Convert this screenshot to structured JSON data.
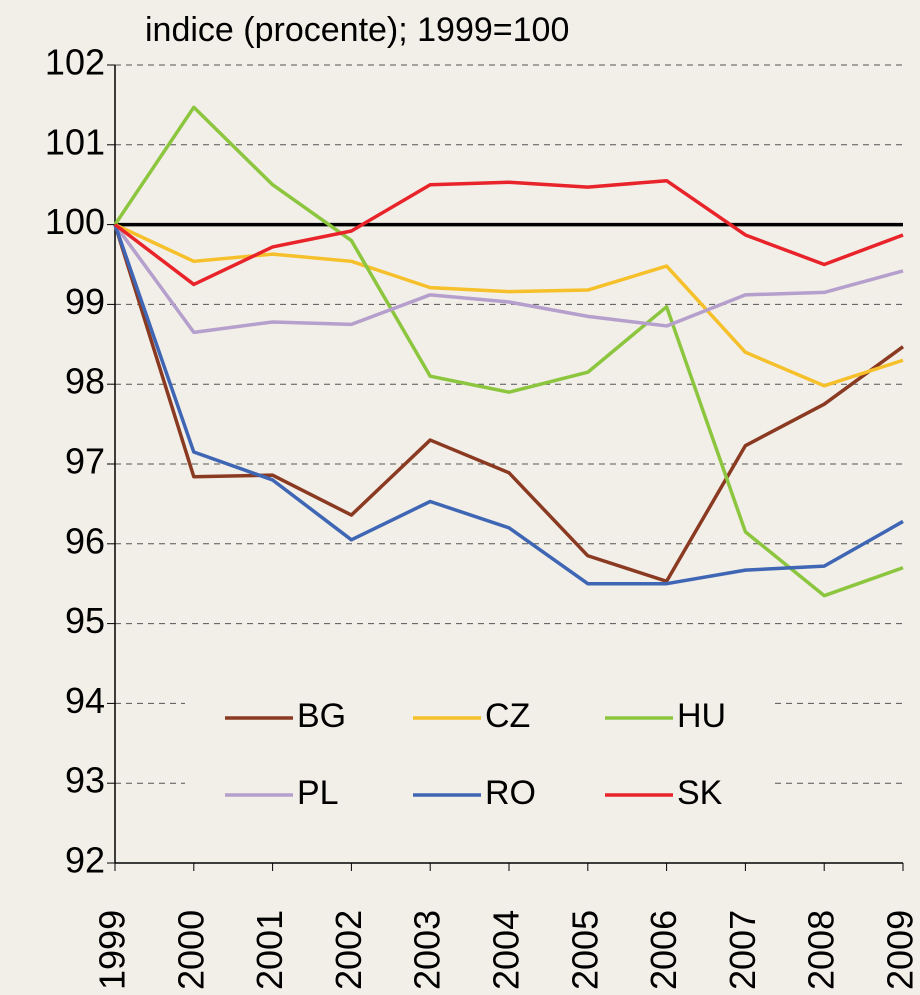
{
  "chart_data": {
    "type": "line",
    "title": "indice (procente); 1999=100",
    "x": [
      1999,
      2000,
      2001,
      2002,
      2003,
      2004,
      2005,
      2006,
      2007,
      2008,
      2009
    ],
    "xlim": [
      1999,
      2009
    ],
    "xticks": [
      1999,
      2000,
      2001,
      2002,
      2003,
      2004,
      2005,
      2006,
      2007,
      2008,
      2009
    ],
    "ylim": [
      92,
      102
    ],
    "yticks": [
      92,
      93,
      94,
      95,
      96,
      97,
      98,
      99,
      100,
      101,
      102
    ],
    "grid": true,
    "reference_line": 100,
    "legend": "inside-bottom",
    "series": [
      {
        "name": "BG",
        "color": "#8b3a22",
        "values": [
          100,
          96.84,
          96.86,
          96.36,
          97.3,
          96.89,
          95.85,
          95.53,
          97.23,
          97.75,
          98.47
        ]
      },
      {
        "name": "CZ",
        "color": "#f5c02a",
        "values": [
          100,
          99.54,
          99.63,
          99.54,
          99.21,
          99.16,
          99.18,
          99.48,
          98.4,
          97.98,
          98.3
        ]
      },
      {
        "name": "HU",
        "color": "#8cc63f",
        "values": [
          100,
          101.47,
          100.5,
          99.8,
          98.1,
          97.9,
          98.15,
          98.97,
          96.15,
          95.35,
          95.7
        ]
      },
      {
        "name": "PL",
        "color": "#b59fcc",
        "values": [
          100,
          98.65,
          98.78,
          98.75,
          99.12,
          99.03,
          98.85,
          98.73,
          99.12,
          99.15,
          99.42
        ]
      },
      {
        "name": "RO",
        "color": "#3f66b4",
        "values": [
          100,
          97.15,
          96.8,
          96.05,
          96.53,
          96.2,
          95.5,
          95.5,
          95.67,
          95.72,
          96.28
        ]
      },
      {
        "name": "SK",
        "color": "#e8232a",
        "values": [
          100,
          99.25,
          99.72,
          99.92,
          100.5,
          100.53,
          100.47,
          100.55,
          99.87,
          99.5,
          99.87
        ]
      }
    ]
  }
}
